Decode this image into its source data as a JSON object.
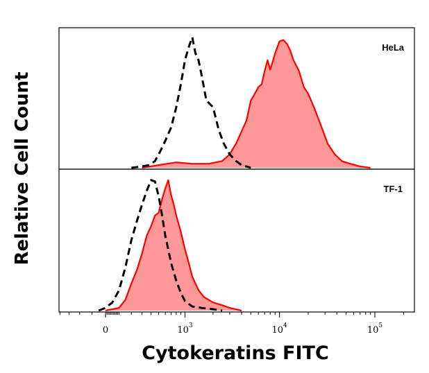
{
  "chart_data": {
    "type": "area",
    "xlabel": "Cytokeratins FITC",
    "ylabel": "Relative Cell Count",
    "x_scale": "biexponential",
    "xlim": [
      -700,
      250000
    ],
    "ylim": [
      0,
      1
    ],
    "x_ticks": [
      {
        "value": 0,
        "base": "0",
        "exp": ""
      },
      {
        "value": 1000,
        "base": "10",
        "exp": "3"
      },
      {
        "value": 10000,
        "base": "10",
        "exp": "4"
      },
      {
        "value": 100000,
        "base": "10",
        "exp": "5"
      }
    ],
    "grid": false,
    "panels": [
      {
        "label": "HeLa",
        "series": [
          {
            "role": "control",
            "style": "dashed",
            "color": "#000000",
            "x": [
              200,
              300,
              380,
              450,
              520,
              600,
              700,
              800,
              900,
              1000,
              1100,
              1200,
              1300,
              1400,
              1500,
              1700,
              2000,
              2300,
              2600,
              3000,
              3500,
              4000,
              4500,
              5000
            ],
            "y": [
              0.0,
              0.01,
              0.02,
              0.05,
              0.12,
              0.2,
              0.3,
              0.45,
              0.62,
              0.8,
              0.9,
              0.97,
              0.85,
              0.8,
              0.7,
              0.5,
              0.45,
              0.28,
              0.18,
              0.1,
              0.05,
              0.02,
              0.01,
              0.0
            ]
          },
          {
            "role": "stained",
            "style": "filled",
            "color": "#ff0000",
            "fill": "#ff9999",
            "x": [
              300,
              500,
              800,
              1200,
              1800,
              2500,
              3000,
              3500,
              4000,
              4500,
              5000,
              5500,
              6000,
              6500,
              7000,
              7500,
              8000,
              9000,
              10000,
              11000,
              12000,
              13000,
              14000,
              16000,
              18000,
              20000,
              23000,
              27000,
              32000,
              38000,
              45000,
              55000,
              70000,
              90000
            ],
            "y": [
              0.0,
              0.02,
              0.04,
              0.03,
              0.03,
              0.05,
              0.1,
              0.18,
              0.27,
              0.35,
              0.5,
              0.55,
              0.6,
              0.62,
              0.72,
              0.8,
              0.73,
              0.85,
              0.94,
              0.95,
              0.92,
              0.87,
              0.8,
              0.72,
              0.6,
              0.55,
              0.45,
              0.32,
              0.18,
              0.1,
              0.05,
              0.03,
              0.01,
              0.0
            ]
          }
        ]
      },
      {
        "label": "TF-1",
        "series": [
          {
            "role": "control",
            "style": "dashed",
            "color": "#000000",
            "x": [
              -50,
              0,
              50,
              100,
              150,
              200,
              250,
              300,
              350,
              400,
              450,
              500,
              550,
              600,
              650,
              700,
              800,
              900,
              1000,
              1200,
              1500,
              2000,
              2500
            ],
            "y": [
              0.0,
              0.02,
              0.06,
              0.15,
              0.32,
              0.52,
              0.66,
              0.78,
              0.88,
              0.96,
              0.95,
              0.84,
              0.7,
              0.55,
              0.45,
              0.35,
              0.22,
              0.13,
              0.07,
              0.03,
              0.02,
              0.01,
              0.0
            ]
          },
          {
            "role": "stained",
            "style": "filled",
            "color": "#ff0000",
            "fill": "#ff9999",
            "x": [
              0,
              100,
              150,
              200,
              250,
              300,
              350,
              400,
              450,
              500,
              550,
              600,
              650,
              700,
              750,
              800,
              900,
              1000,
              1100,
              1200,
              1400,
              1600,
              2000,
              2500,
              3000,
              4000
            ],
            "y": [
              0.0,
              0.02,
              0.08,
              0.2,
              0.3,
              0.42,
              0.55,
              0.62,
              0.7,
              0.72,
              0.82,
              0.9,
              0.96,
              0.85,
              0.78,
              0.7,
              0.58,
              0.45,
              0.35,
              0.25,
              0.15,
              0.1,
              0.06,
              0.04,
              0.02,
              0.0
            ]
          }
        ]
      }
    ]
  }
}
